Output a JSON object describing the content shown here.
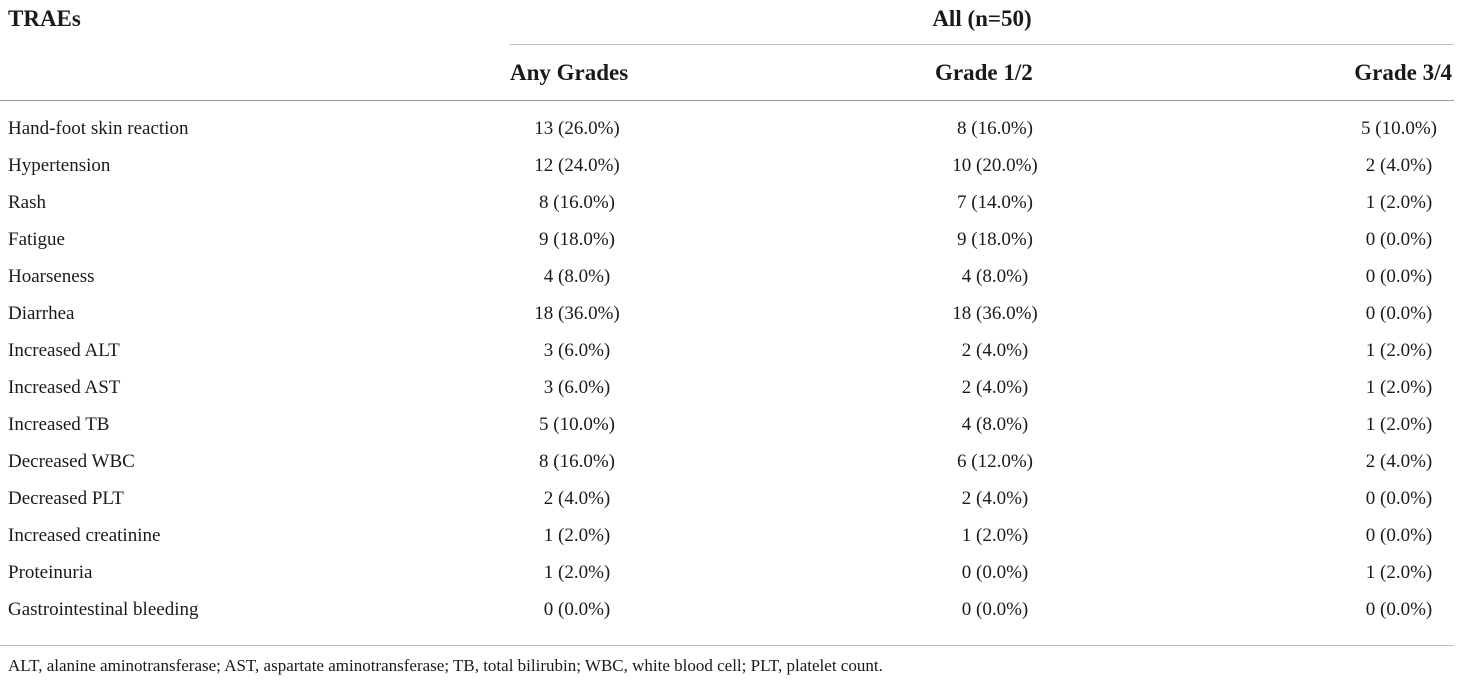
{
  "header": {
    "row_label": "TRAEs",
    "group_label": "All (n=50)",
    "columns": [
      "Any Grades",
      "Grade 1/2",
      "Grade 3/4"
    ]
  },
  "rows": [
    {
      "name": "Hand-foot skin reaction",
      "any": "13 (26.0%)",
      "g12": "8 (16.0%)",
      "g34": "5 (10.0%)"
    },
    {
      "name": "Hypertension",
      "any": "12 (24.0%)",
      "g12": "10 (20.0%)",
      "g34": "2 (4.0%)"
    },
    {
      "name": "Rash",
      "any": "8 (16.0%)",
      "g12": "7 (14.0%)",
      "g34": "1 (2.0%)"
    },
    {
      "name": "Fatigue",
      "any": "9 (18.0%)",
      "g12": "9 (18.0%)",
      "g34": "0 (0.0%)"
    },
    {
      "name": "Hoarseness",
      "any": "4 (8.0%)",
      "g12": "4 (8.0%)",
      "g34": "0 (0.0%)"
    },
    {
      "name": "Diarrhea",
      "any": "18 (36.0%)",
      "g12": "18 (36.0%)",
      "g34": "0 (0.0%)"
    },
    {
      "name": "Increased ALT",
      "any": "3 (6.0%)",
      "g12": "2 (4.0%)",
      "g34": "1 (2.0%)"
    },
    {
      "name": "Increased AST",
      "any": "3 (6.0%)",
      "g12": "2 (4.0%)",
      "g34": "1 (2.0%)"
    },
    {
      "name": "Increased TB",
      "any": "5 (10.0%)",
      "g12": "4 (8.0%)",
      "g34": "1 (2.0%)"
    },
    {
      "name": "Decreased WBC",
      "any": "8 (16.0%)",
      "g12": "6 (12.0%)",
      "g34": "2 (4.0%)"
    },
    {
      "name": "Decreased PLT",
      "any": "2 (4.0%)",
      "g12": "2 (4.0%)",
      "g34": "0 (0.0%)"
    },
    {
      "name": "Increased creatinine",
      "any": "1 (2.0%)",
      "g12": "1 (2.0%)",
      "g34": "0 (0.0%)"
    },
    {
      "name": "Proteinuria",
      "any": "1 (2.0%)",
      "g12": "0 (0.0%)",
      "g34": "1 (2.0%)"
    },
    {
      "name": "Gastrointestinal bleeding",
      "any": "0 (0.0%)",
      "g12": "0 (0.0%)",
      "g34": "0 (0.0%)"
    }
  ],
  "footnote": "ALT, alanine aminotransferase; AST, aspartate aminotransferase; TB, total bilirubin; WBC, white blood cell; PLT, platelet count."
}
